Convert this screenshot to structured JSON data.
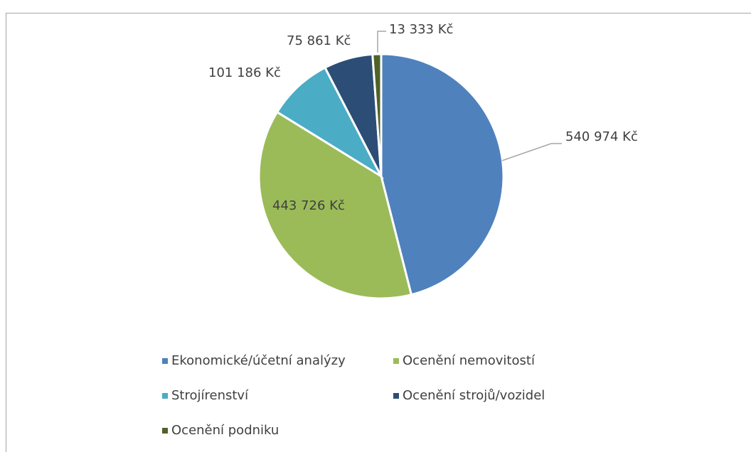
{
  "chart_data": {
    "type": "pie",
    "categories": [
      "Ekonomické/účetní analýzy",
      "Ocenění nemovitostí",
      "Strojírenství",
      "Ocenění strojů/vozidel",
      "Ocenění podniku"
    ],
    "values": [
      540974,
      443726,
      101186,
      75861,
      13333
    ],
    "value_labels": [
      "540 974 Kč",
      "443 726 Kč",
      "101 186 Kč",
      "75 861 Kč",
      "13 333 Kč"
    ],
    "colors": [
      "#4f81bd",
      "#9bbb59",
      "#4bacc6",
      "#2c4d75",
      "#4f6228"
    ],
    "legend": "bottom"
  }
}
